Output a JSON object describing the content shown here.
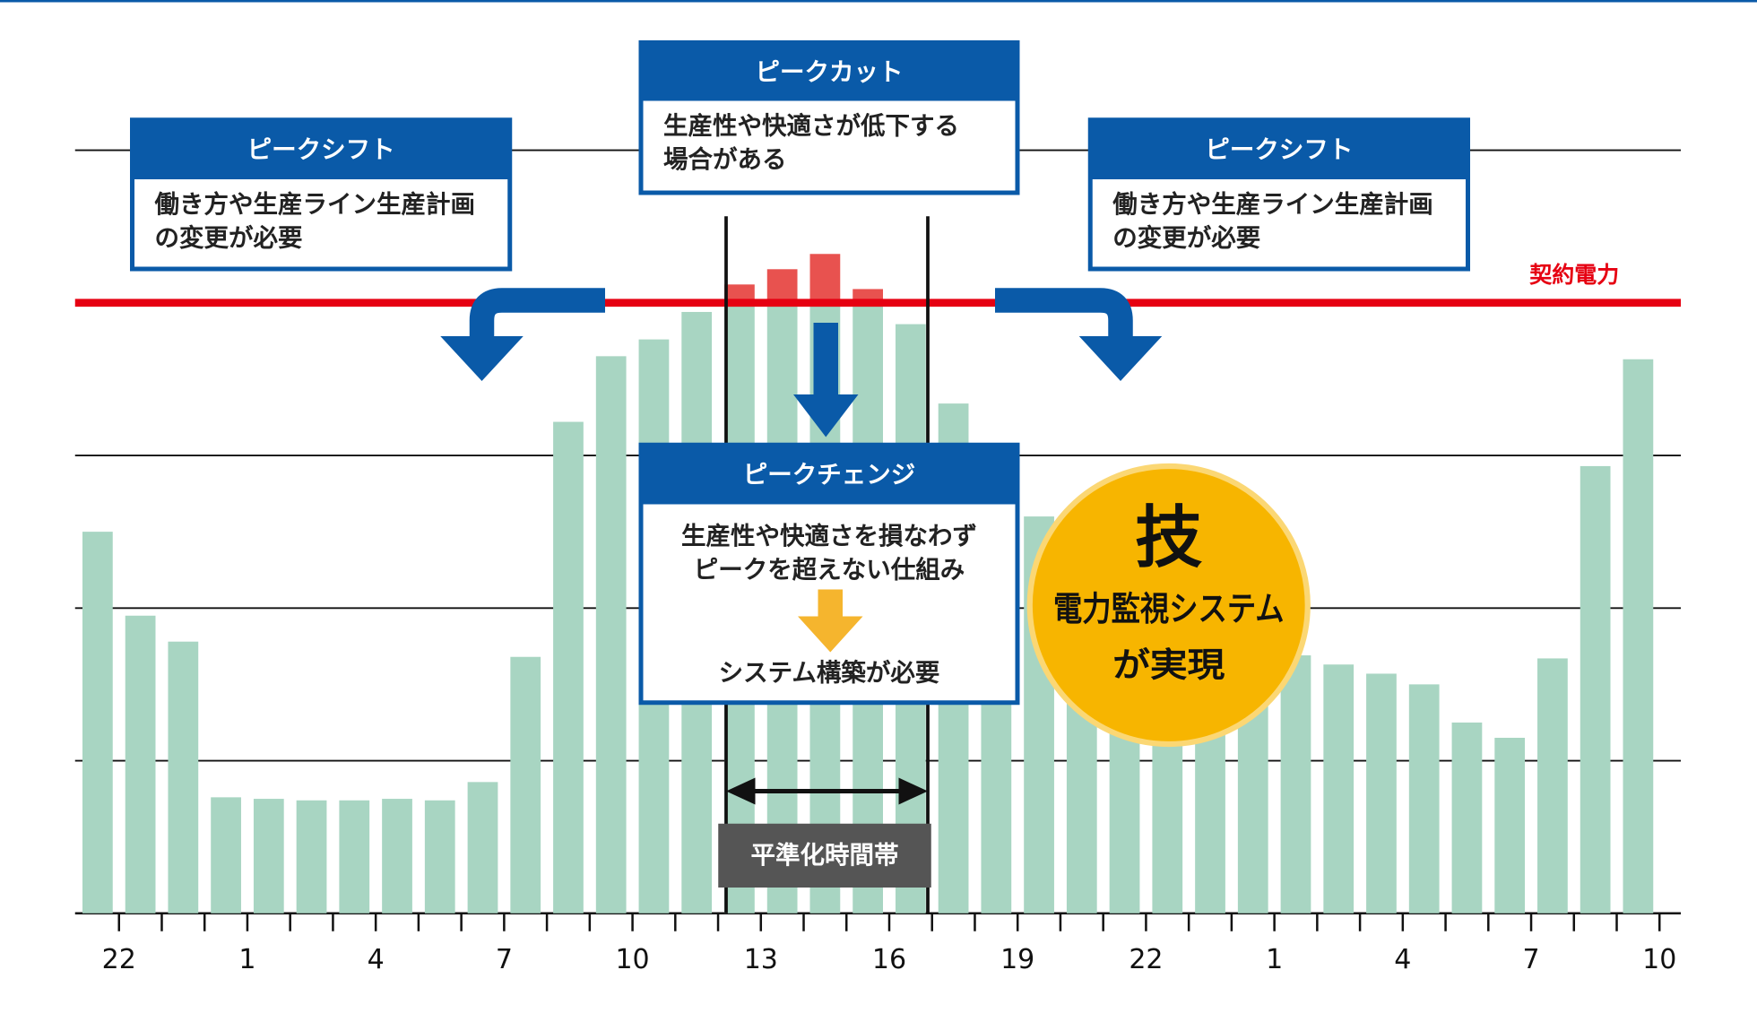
{
  "chart_data": {
    "type": "bar",
    "categories": [
      "22",
      null,
      null,
      "1",
      null,
      null,
      "4",
      null,
      null,
      "7",
      null,
      null,
      "10",
      null,
      null,
      "13",
      null,
      null,
      "16",
      null,
      null,
      "19",
      null,
      null,
      "22",
      null,
      null,
      "1",
      null,
      null,
      "4",
      null,
      null,
      "7",
      null,
      null,
      "10"
    ],
    "values": [
      2.5,
      1.95,
      1.78,
      0.76,
      0.75,
      0.74,
      0.74,
      0.75,
      0.74,
      0.86,
      1.68,
      3.22,
      3.65,
      3.76,
      3.94,
      4.12,
      4.22,
      4.32,
      4.09,
      3.86,
      3.34,
      2.9,
      2.6,
      2.45,
      2.3,
      2.2,
      1.95,
      1.7,
      1.69,
      1.63,
      1.57,
      1.5,
      1.25,
      1.15,
      1.67,
      2.93,
      3.63
    ],
    "color": "#a8d5c2",
    "excess_color": "#e8524f",
    "ylim": [
      0,
      5
    ],
    "yticks": [
      1,
      2,
      3,
      5
    ],
    "grid": true,
    "contract": {
      "label": "契約電力",
      "value": 4,
      "color": "#e60012"
    },
    "annotations": {
      "shift_left": {
        "title": "ピークシフト",
        "lines": [
          "働き方や生産ライン生産計画",
          "の変更が必要"
        ]
      },
      "cut": {
        "title": "ピークカット",
        "lines": [
          "生産性や快適さが低下する",
          "場合がある"
        ]
      },
      "shift_right": {
        "title": "ピークシフト",
        "lines": [
          "働き方や生産ライン生産計画",
          "の変更が必要"
        ]
      },
      "change": {
        "title": "ピークチェンジ",
        "lines": [
          "生産性や快適さを損なわず",
          "ピークを超えない仕組み"
        ],
        "result": "システム構築が必要"
      },
      "badge": {
        "icon": "技",
        "lines": [
          "電力監視システム",
          "が実現"
        ]
      },
      "leveling": "平準化時間帯"
    }
  }
}
